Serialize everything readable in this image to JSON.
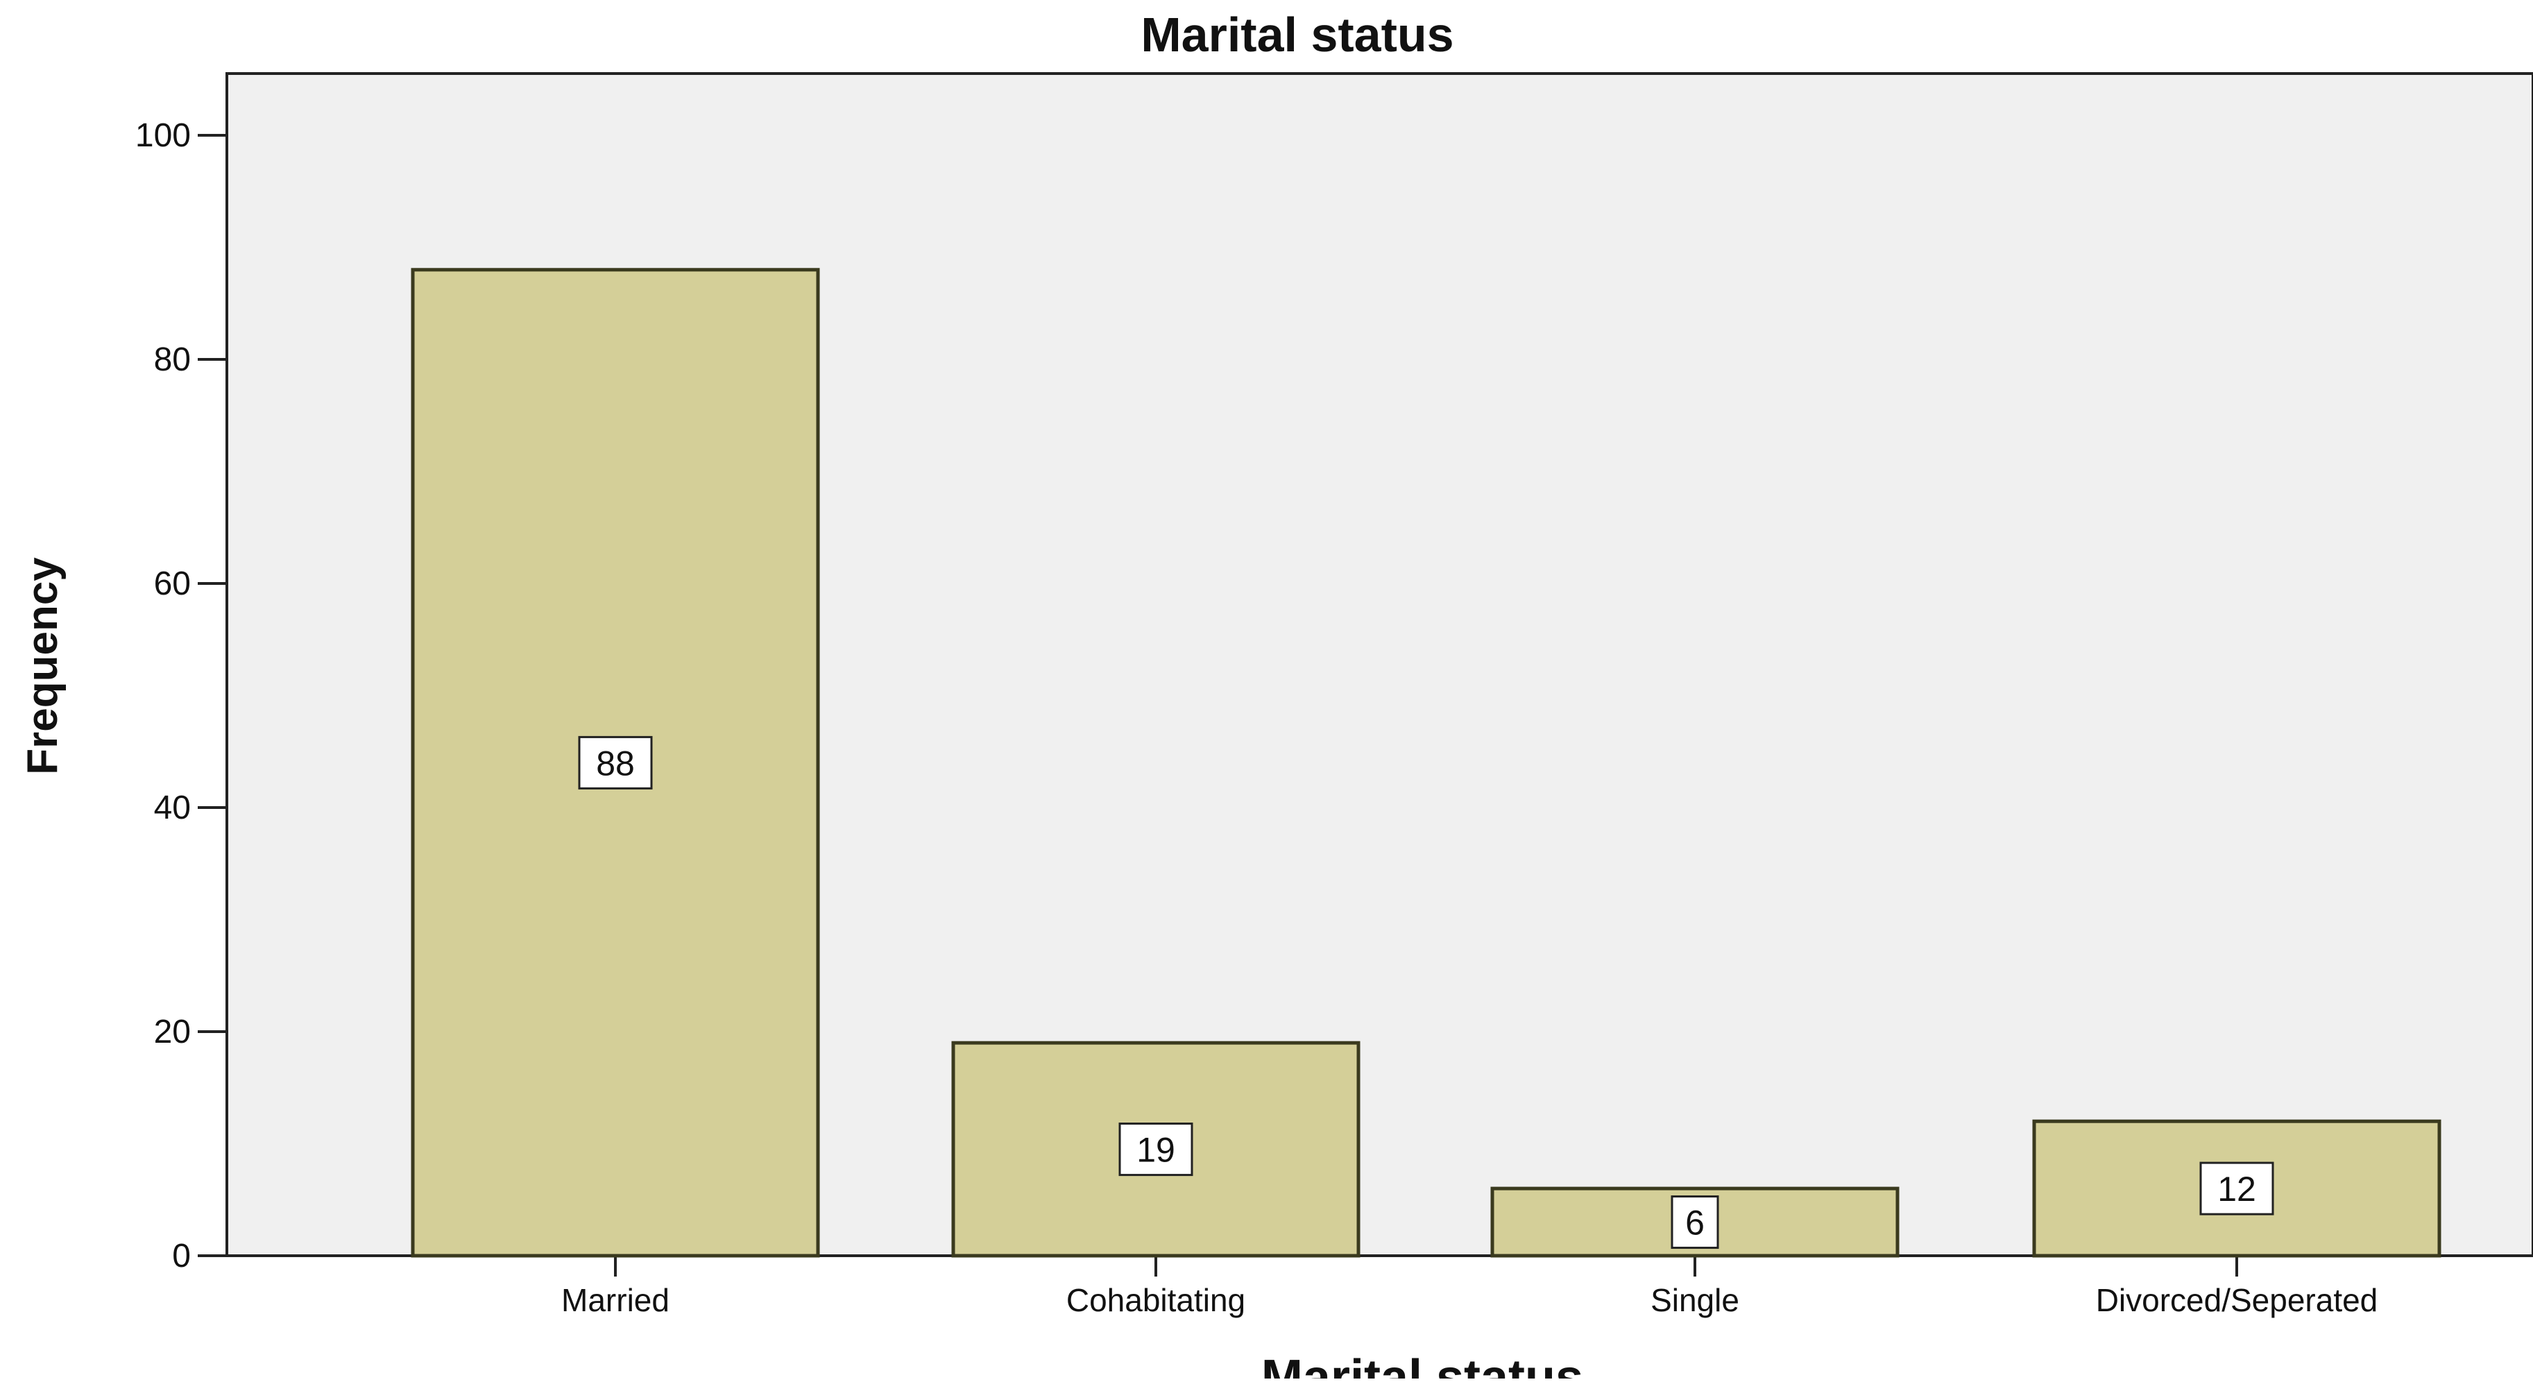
{
  "chart_data": {
    "type": "bar",
    "title": "Marital status",
    "xlabel": "Marital status",
    "ylabel": "Frequency",
    "categories": [
      "Married",
      "Cohabitating",
      "Single",
      "Divorced/Seperated"
    ],
    "values": [
      88,
      19,
      6,
      12
    ],
    "data_labels": [
      "88",
      "19",
      "6",
      "12"
    ],
    "ylim": [
      0,
      100
    ],
    "yticks": [
      0,
      20,
      40,
      60,
      80,
      100
    ],
    "ytick_labels": [
      "0",
      "20",
      "40",
      "60",
      "80",
      "100"
    ],
    "grid": false,
    "legend": "none",
    "colors": {
      "bar_fill": "#d4cf98",
      "bar_stroke": "#3a3a1e",
      "plot_background": "#f0f0f0",
      "axis": "#222222",
      "text": "#111111",
      "label_box_fill": "#ffffff"
    }
  }
}
